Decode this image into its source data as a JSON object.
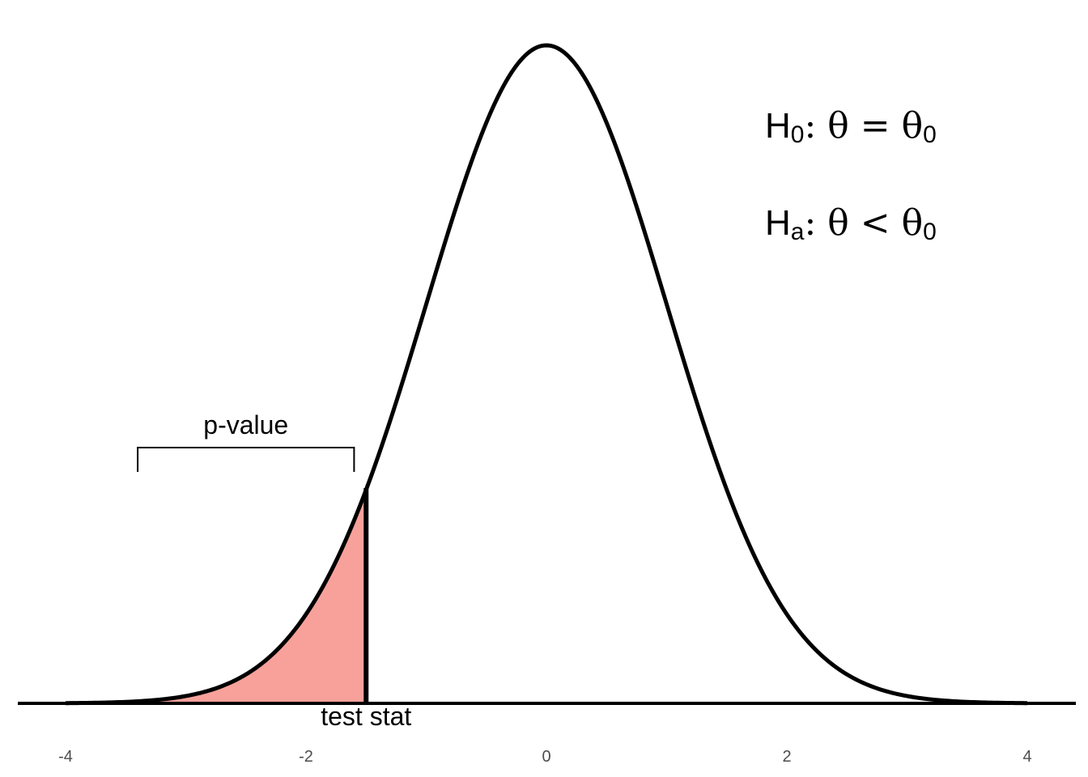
{
  "chart_data": {
    "type": "area",
    "distribution": "standard normal density",
    "x_range": [
      -4,
      4
    ],
    "xlim": [
      -4.2,
      4.2
    ],
    "ylim": [
      0,
      0.4
    ],
    "x_ticks": [
      {
        "value": -4,
        "label": "-4"
      },
      {
        "value": -2,
        "label": "-2"
      },
      {
        "value": 0,
        "label": "0"
      },
      {
        "value": 2,
        "label": "2"
      },
      {
        "value": 4,
        "label": "4"
      }
    ],
    "test_stat": {
      "value": -1.5,
      "label": "test stat"
    },
    "shaded_region": {
      "from": -4,
      "to": -1.5,
      "color": "#f8a19b"
    },
    "p_value_bracket": {
      "label": "p-value",
      "from": -3.4,
      "to": -1.6
    },
    "hypotheses": {
      "null": {
        "prefix": "H",
        "sub": "0",
        "rest": ": θ = θ",
        "sub2": "0"
      },
      "alternative": {
        "prefix": "H",
        "sub": "a",
        "rest": ": θ < θ",
        "sub2": "0"
      }
    },
    "grid": false,
    "legend": "none",
    "colors": {
      "curve": "#000000",
      "shade": "#f8a19b",
      "baseline": "#000000"
    }
  }
}
